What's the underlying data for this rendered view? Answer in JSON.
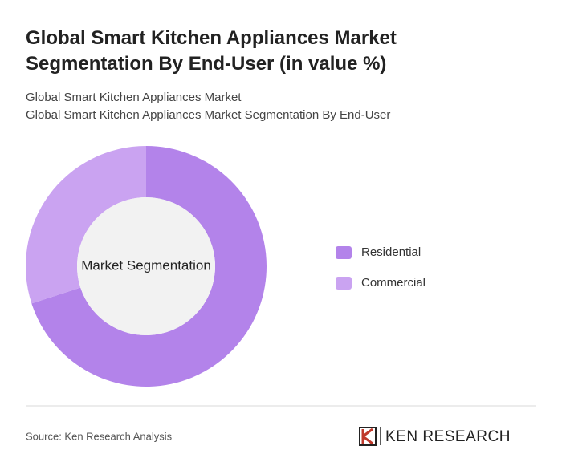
{
  "chart_data": {
    "type": "donut",
    "title": "Global Smart Kitchen Appliances Market Segmentation By End-User (in value %)",
    "subtitles": [
      "Global Smart Kitchen Appliances Market",
      "Global Smart Kitchen Appliances Market Segmentation By End-User"
    ],
    "center_label": "Market Segmentation",
    "categories": [
      "Residential",
      "Commercial"
    ],
    "values": [
      70,
      30
    ],
    "colors": [
      "#b383ea",
      "#caa3f1"
    ],
    "source": "Source: Ken Research Analysis",
    "brand": "KEN RESEARCH"
  }
}
